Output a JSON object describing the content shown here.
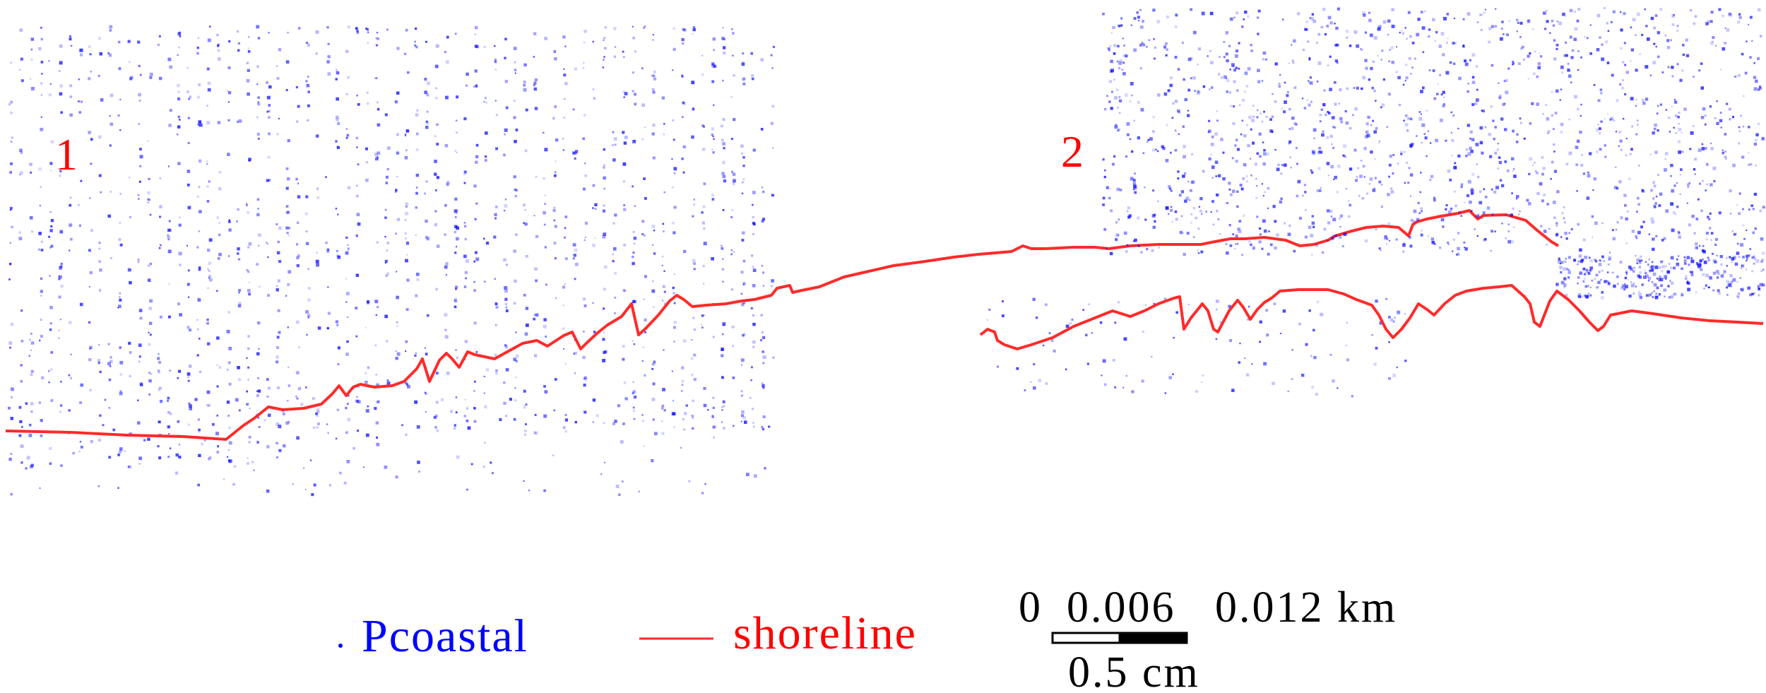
{
  "panels": [
    {
      "label": "1"
    },
    {
      "label": "2"
    }
  ],
  "legend": {
    "points_label": "Pcoastal",
    "line_label": "shoreline"
  },
  "scale": {
    "tick_0": "0",
    "tick_1": "0.006",
    "tick_2": "0.012 km",
    "bar_length_label": "0.5 cm"
  },
  "colors": {
    "points": "#0000ff",
    "shoreline": "#ff0000",
    "labels": "#ff0000"
  }
}
